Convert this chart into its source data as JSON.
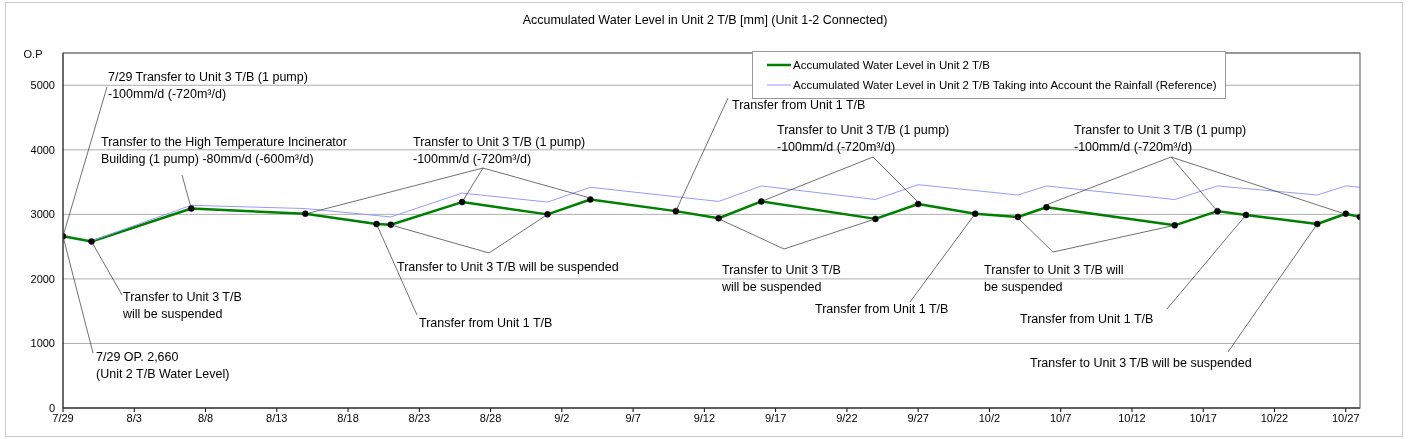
{
  "chart_data": {
    "type": "line",
    "title": "Accumulated Water Level in Unit 2 T/B [mm] (Unit 1-2 Connected)",
    "ylabel": "O.P",
    "xlim": [
      "--07-29",
      "--10-28"
    ],
    "xticks": [
      {
        "value": "--07-29",
        "label": "7/29"
      },
      {
        "value": "--08-03",
        "label": "8/3"
      },
      {
        "value": "--08-08",
        "label": "8/8"
      },
      {
        "value": "--08-13",
        "label": "8/13"
      },
      {
        "value": "--08-18",
        "label": "8/18"
      },
      {
        "value": "--08-23",
        "label": "8/23"
      },
      {
        "value": "--08-28",
        "label": "8/28"
      },
      {
        "value": "--09-02",
        "label": "9/2"
      },
      {
        "value": "--09-07",
        "label": "9/7"
      },
      {
        "value": "--09-12",
        "label": "9/12"
      },
      {
        "value": "--09-17",
        "label": "9/17"
      },
      {
        "value": "--09-22",
        "label": "9/22"
      },
      {
        "value": "--09-27",
        "label": "9/27"
      },
      {
        "value": "--10-02",
        "label": "10/2"
      },
      {
        "value": "--10-07",
        "label": "10/7"
      },
      {
        "value": "--10-12",
        "label": "10/12"
      },
      {
        "value": "--10-17",
        "label": "10/17"
      },
      {
        "value": "--10-22",
        "label": "10/22"
      },
      {
        "value": "--10-27",
        "label": "10/27"
      }
    ],
    "ylim": [
      0,
      5500
    ],
    "yticks": [
      0,
      1000,
      2000,
      3000,
      4000,
      5000
    ],
    "grid": "y",
    "legend": "top right",
    "series": [
      {
        "name": "Accumulated Water Level in Unit 2 T/B",
        "color": "#008000",
        "marker": "circle",
        "x": [
          "--07-29",
          "--07-31",
          "--08-07",
          "--08-15",
          "--08-20",
          "--08-21",
          "--08-26",
          "--09-01",
          "--09-04",
          "--09-10",
          "--09-13",
          "--09-16",
          "--09-24",
          "--09-27",
          "--10-01",
          "--10-04",
          "--10-06",
          "--10-15",
          "--10-18",
          "--10-20",
          "--10-25",
          "--10-27",
          "--10-28"
        ],
        "values": [
          2660,
          2580,
          3090,
          3010,
          2850,
          2840,
          3190,
          3000,
          3230,
          3050,
          2940,
          3200,
          2930,
          3160,
          3010,
          2960,
          3110,
          2830,
          3050,
          2990,
          2850,
          3010,
          2960
        ]
      },
      {
        "name": "Accumulated Water Level in Unit 2 T/B Taking into Account the Rainfall (Reference)",
        "color": "#9999ff",
        "marker": "none",
        "x": [
          "--07-31",
          "--08-07",
          "--08-15",
          "--08-21",
          "--08-26",
          "--09-01",
          "--09-04",
          "--09-13",
          "--09-16",
          "--09-24",
          "--09-27",
          "--10-04",
          "--10-06",
          "--10-15",
          "--10-18",
          "--10-25",
          "--10-27",
          "--10-28"
        ],
        "values": [
          2590,
          3140,
          3090,
          2960,
          3330,
          3190,
          3420,
          3200,
          3440,
          3230,
          3460,
          3300,
          3440,
          3230,
          3440,
          3300,
          3440,
          3420
        ]
      }
    ],
    "annotations": [
      {
        "text": "7/29 Transfer to Unit 3 T/B (1 pump)\n-100mm/d (-720m³/d)",
        "x": "--07-29",
        "y": 2660
      },
      {
        "text": "7/29 OP. 2,660\n(Unit 2 T/B Water Level)",
        "x": "--07-29",
        "y": 2660
      },
      {
        "text": "Transfer to Unit 3 T/B\nwill be suspended",
        "x": "--07-31",
        "y": 2580
      },
      {
        "text": "Transfer to the High Temperature Incinerator\nBuilding (1 pump) -80mm/d (-600m³/d)",
        "x": "--08-07",
        "y": 3090
      },
      {
        "text": "Transfer to Unit 3 T/B (1 pump)\n-100mm/d (-720m³/d)",
        "x": "--08-26",
        "y": 3190
      },
      {
        "text": "Transfer to Unit 3 T/B will be suspended",
        "x": "--09-01",
        "y": 3000
      },
      {
        "text": "Transfer from Unit 1 T/B",
        "x": "--08-20",
        "y": 2850
      },
      {
        "text": "Transfer from Unit 1 T/B",
        "x": "--09-10",
        "y": 3050
      },
      {
        "text": "Transfer to Unit 3 T/B (1 pump)\n-100mm/d (-720m³/d)",
        "x": "--09-16",
        "y": 3200
      },
      {
        "text": "Transfer to Unit 3 T/B\nwill be suspended",
        "x": "--09-24",
        "y": 2930
      },
      {
        "text": "Transfer from Unit 1 T/B",
        "x": "--10-01",
        "y": 3010
      },
      {
        "text": "Transfer to Unit 3 T/B (1 pump)\n-100mm/d (-720m³/d)",
        "x": "--10-18",
        "y": 3050
      },
      {
        "text": "Transfer to Unit 3 T/B will\nbe suspended",
        "x": "--10-15",
        "y": 2830
      },
      {
        "text": "Transfer from Unit 1 T/B",
        "x": "--10-20",
        "y": 2990
      },
      {
        "text": "Transfer to Unit 3 T/B will be suspended",
        "x": "--10-25",
        "y": 2850
      }
    ]
  }
}
